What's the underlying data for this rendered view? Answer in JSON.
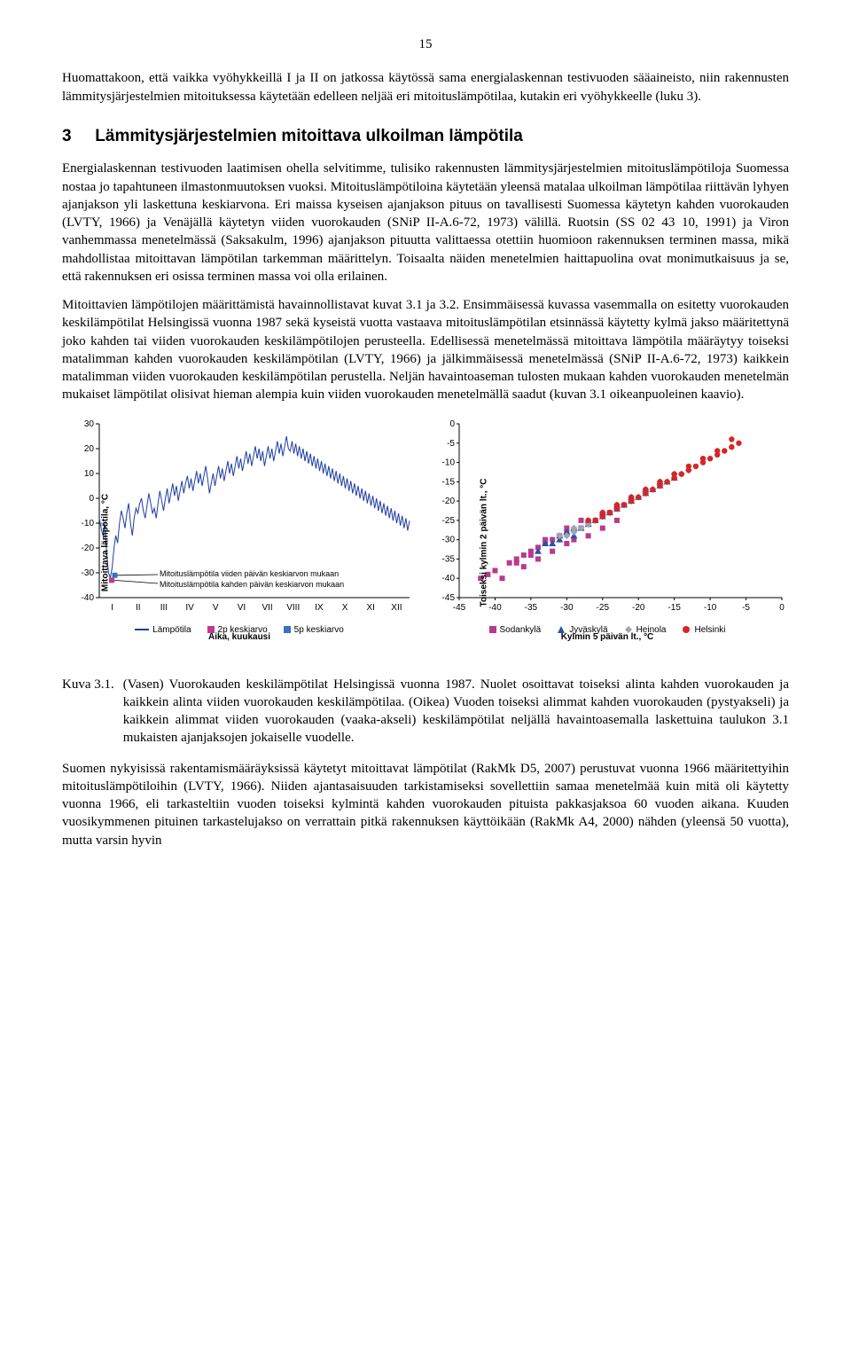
{
  "page_number": "15",
  "para1": "Huomattakoon, että vaikka vyöhykkeillä I ja II on jatkossa käytössä sama energialaskennan testivuoden sääaineisto, niin rakennusten lämmitysjärjestelmien mitoituksessa käytetään edelleen neljää eri mitoituslämpötilaa, kutakin eri vyöhykkeelle (luku 3).",
  "heading_num": "3",
  "heading_text": "Lämmitysjärjestelmien mitoittava ulkoilman lämpötila",
  "para2": "Energialaskennan testivuoden laatimisen ohella selvitimme, tulisiko rakennusten lämmitysjärjestelmien mitoituslämpötiloja Suomessa nostaa jo tapahtuneen ilmastonmuutoksen vuoksi. Mitoituslämpötiloina käytetään yleensä matalaa ulkoilman lämpötilaa riittävän lyhyen ajanjakson yli laskettuna keskiarvona. Eri maissa kyseisen ajanjakson pituus on tavallisesti Suomessa käytetyn kahden vuorokauden (LVTY, 1966) ja Venäjällä käytetyn viiden vuorokauden (SNiP II-A.6-72, 1973) välillä. Ruotsin (SS 02 43 10, 1991) ja Viron vanhemmassa menetelmässä (Saksakulm, 1996) ajanjakson pituutta valittaessa otettiin huomioon rakennuksen terminen massa, mikä mahdollistaa mitoittavan lämpötilan tarkemman määrittelyn. Toisaalta näiden menetelmien haittapuolina ovat monimutkaisuus ja se, että rakennuksen eri osissa terminen massa voi olla erilainen.",
  "para3": "Mitoittavien lämpötilojen määrittämistä havainnollistavat kuvat 3.1 ja 3.2. Ensimmäisessä kuvassa vasemmalla on esitetty vuorokauden keskilämpötilat Helsingissä vuonna 1987 sekä kyseistä vuotta vastaava mitoituslämpötilan etsinnässä käytetty kylmä jakso määritettynä joko kahden tai viiden vuorokauden keskilämpötilojen perusteella. Edellisessä menetelmässä mitoittava lämpötila määräytyy toiseksi matalimman kahden vuorokauden keskilämpötilan (LVTY, 1966) ja jälkimmäisessä menetelmässä (SNiP II-A.6-72, 1973) kaikkein matalimman viiden vuorokauden keskilämpötilan perustella. Neljän havaintoaseman tulosten mukaan kahden vuorokauden menetelmän mukaiset lämpötilat olisivat hieman alempia kuin viiden vuorokauden menetelmällä saadut (kuvan 3.1 oikeanpuoleinen kaavio).",
  "chart_left": {
    "type": "line",
    "ylabel": "Mitoittava lämpötila, °C",
    "xlabel": "Aika, kuukausi",
    "ylim": [
      -40,
      30
    ],
    "ytick_step": 10,
    "xticks": [
      "I",
      "II",
      "III",
      "IV",
      "V",
      "VI",
      "VII",
      "VIII",
      "IX",
      "X",
      "XI",
      "XII"
    ],
    "line_color": "#1f3da1",
    "marker_2p_color": "#c23a8e",
    "marker_5p_color": "#3a72c2",
    "note1": "Mitoituslämpötila viiden päivän keskiarvon mukaan",
    "note2": "Mitoituslämpötila kahden päivän keskiarvon mukaan",
    "legend": [
      {
        "label": "Lämpötila",
        "type": "line",
        "color": "#1f3da1"
      },
      {
        "label": "2p keskiarvo",
        "type": "square",
        "color": "#c23a8e"
      },
      {
        "label": "5p keskiarvo",
        "type": "square",
        "color": "#3a72c2"
      }
    ],
    "series": [
      -8,
      -12,
      -15,
      -10,
      -22,
      -30,
      -32,
      -28,
      -20,
      -15,
      -18,
      -10,
      -5,
      -8,
      -12,
      -6,
      -2,
      -10,
      -15,
      -8,
      -4,
      -6,
      -2,
      0,
      -5,
      -8,
      -3,
      2,
      -2,
      -6,
      -4,
      -8,
      -2,
      3,
      -1,
      -5,
      0,
      4,
      -2,
      2,
      6,
      1,
      5,
      -1,
      3,
      7,
      2,
      6,
      9,
      4,
      8,
      3,
      7,
      11,
      6,
      10,
      5,
      9,
      13,
      8,
      2,
      6,
      10,
      5,
      9,
      13,
      8,
      12,
      7,
      11,
      15,
      10,
      14,
      9,
      13,
      17,
      12,
      16,
      11,
      15,
      19,
      14,
      18,
      13,
      17,
      21,
      16,
      20,
      15,
      19,
      13,
      17,
      21,
      16,
      20,
      15,
      19,
      23,
      18,
      22,
      17,
      21,
      25,
      20,
      19,
      23,
      18,
      22,
      17,
      21,
      16,
      20,
      15,
      19,
      14,
      18,
      13,
      17,
      12,
      16,
      11,
      15,
      10,
      14,
      9,
      13,
      8,
      12,
      7,
      11,
      6,
      10,
      5,
      9,
      4,
      8,
      3,
      7,
      2,
      6,
      1,
      5,
      0,
      4,
      -1,
      3,
      -2,
      2,
      -3,
      1,
      -4,
      0,
      -5,
      -1,
      -6,
      -2,
      -7,
      -3,
      -8,
      -4,
      -9,
      -5,
      -10,
      -6,
      -11,
      -7,
      -12,
      -8,
      -13,
      -9
    ]
  },
  "chart_right": {
    "type": "scatter",
    "ylabel": "Toiseksi kylmin 2 päivän lt., °C",
    "xlabel": "Kylmin 5 päivän lt., °C",
    "xlim": [
      -45,
      0
    ],
    "xtick_step": 5,
    "ylim": [
      -45,
      0
    ],
    "ytick_step": 5,
    "legend": [
      {
        "label": "Sodankylä",
        "type": "square",
        "color": "#b83a8e"
      },
      {
        "label": "Jyväskylä",
        "type": "triangle",
        "color": "#2852a8"
      },
      {
        "label": "Heinola",
        "type": "diamond",
        "color": "#9fa6ad"
      },
      {
        "label": "Helsinki",
        "type": "circle",
        "color": "#d62626"
      }
    ],
    "points": {
      "Sodankylä": [
        [
          -42,
          -40
        ],
        [
          -40,
          -38
        ],
        [
          -39,
          -40
        ],
        [
          -38,
          -36
        ],
        [
          -37,
          -35
        ],
        [
          -36,
          -37
        ],
        [
          -35,
          -33
        ],
        [
          -34,
          -35
        ],
        [
          -33,
          -31
        ],
        [
          -32,
          -33
        ],
        [
          -31,
          -29
        ],
        [
          -30,
          -31
        ],
        [
          -30,
          -28
        ],
        [
          -29,
          -30
        ],
        [
          -28,
          -27
        ],
        [
          -27,
          -29
        ],
        [
          -26,
          -25
        ],
        [
          -25,
          -27
        ],
        [
          -24,
          -23
        ],
        [
          -23,
          -25
        ],
        [
          -22,
          -21
        ],
        [
          -36,
          -34
        ],
        [
          -34,
          -32
        ],
        [
          -32,
          -30
        ],
        [
          -30,
          -27
        ],
        [
          -28,
          -25
        ],
        [
          -41,
          -39
        ],
        [
          -37,
          -36
        ],
        [
          -35,
          -34
        ],
        [
          -33,
          -30
        ]
      ],
      "Jyväskylä": [
        [
          -34,
          -33
        ],
        [
          -32,
          -31
        ],
        [
          -31,
          -30
        ],
        [
          -30,
          -28
        ],
        [
          -29,
          -29
        ],
        [
          -28,
          -27
        ],
        [
          -27,
          -26
        ],
        [
          -26,
          -25
        ],
        [
          -25,
          -24
        ],
        [
          -24,
          -23
        ],
        [
          -23,
          -22
        ],
        [
          -22,
          -21
        ],
        [
          -21,
          -20
        ],
        [
          -20,
          -19
        ],
        [
          -19,
          -18
        ],
        [
          -18,
          -17
        ],
        [
          -17,
          -16
        ],
        [
          -16,
          -15
        ],
        [
          -15,
          -14
        ],
        [
          -33,
          -31
        ],
        [
          -31,
          -29
        ],
        [
          -29,
          -27
        ],
        [
          -27,
          -25
        ],
        [
          -25,
          -23
        ],
        [
          -23,
          -21
        ],
        [
          -21,
          -19
        ],
        [
          -19,
          -17
        ],
        [
          -17,
          -15
        ]
      ],
      "Heinola": [
        [
          -30,
          -29
        ],
        [
          -29,
          -28
        ],
        [
          -28,
          -27
        ],
        [
          -27,
          -26
        ],
        [
          -26,
          -25
        ],
        [
          -25,
          -24
        ],
        [
          -24,
          -23
        ],
        [
          -23,
          -22
        ],
        [
          -22,
          -21
        ],
        [
          -21,
          -20
        ],
        [
          -20,
          -19
        ],
        [
          -19,
          -18
        ],
        [
          -18,
          -17
        ],
        [
          -17,
          -16
        ],
        [
          -16,
          -15
        ],
        [
          -15,
          -14
        ],
        [
          -14,
          -13
        ],
        [
          -13,
          -12
        ],
        [
          -31,
          -29
        ],
        [
          -29,
          -27
        ],
        [
          -27,
          -25
        ],
        [
          -25,
          -23
        ],
        [
          -23,
          -21
        ],
        [
          -21,
          -19
        ],
        [
          -19,
          -17
        ],
        [
          -17,
          -15
        ],
        [
          -15,
          -13
        ]
      ],
      "Helsinki": [
        [
          -26,
          -25
        ],
        [
          -25,
          -24
        ],
        [
          -24,
          -23
        ],
        [
          -23,
          -22
        ],
        [
          -22,
          -21
        ],
        [
          -21,
          -20
        ],
        [
          -20,
          -19
        ],
        [
          -19,
          -18
        ],
        [
          -18,
          -17
        ],
        [
          -17,
          -16
        ],
        [
          -16,
          -15
        ],
        [
          -15,
          -14
        ],
        [
          -14,
          -13
        ],
        [
          -13,
          -12
        ],
        [
          -12,
          -11
        ],
        [
          -11,
          -10
        ],
        [
          -10,
          -9
        ],
        [
          -9,
          -8
        ],
        [
          -8,
          -7
        ],
        [
          -7,
          -6
        ],
        [
          -6,
          -5
        ],
        [
          -27,
          -25
        ],
        [
          -25,
          -23
        ],
        [
          -23,
          -21
        ],
        [
          -21,
          -19
        ],
        [
          -19,
          -17
        ],
        [
          -17,
          -15
        ],
        [
          -15,
          -13
        ],
        [
          -13,
          -11
        ],
        [
          -11,
          -9
        ],
        [
          -9,
          -7
        ],
        [
          -7,
          -4
        ]
      ]
    }
  },
  "fig_label": "Kuva 3.1.",
  "fig_caption": "(Vasen) Vuorokauden keskilämpötilat Helsingissä vuonna 1987. Nuolet osoittavat toiseksi alinta kahden vuorokauden ja kaikkein alinta viiden vuorokauden keskilämpötilaa. (Oikea) Vuoden toiseksi alimmat kahden vuorokauden (pystyakseli) ja kaikkein alimmat viiden vuorokauden (vaaka-akseli) keskilämpötilat neljällä havaintoasemalla laskettuina taulukon 3.1 mukaisten ajanjaksojen jokaiselle vuodelle.",
  "para4": "Suomen nykyisissä rakentamismääräyksissä käytetyt mitoittavat lämpötilat (RakMk D5, 2007) perustuvat vuonna 1966 määritettyihin mitoituslämpötiloihin (LVTY, 1966). Niiden ajantasaisuuden tarkistamiseksi sovellettiin samaa menetelmää kuin mitä oli käytetty vuonna 1966, eli tarkasteltiin vuoden toiseksi kylmintä kahden vuorokauden pituista pakkasjaksoa 60 vuoden aikana. Kuuden vuosikymmenen pituinen tarkastelujakso on verrattain pitkä rakennuksen käyttöikään (RakMk A4, 2000) nähden (yleensä 50 vuotta), mutta varsin hyvin"
}
